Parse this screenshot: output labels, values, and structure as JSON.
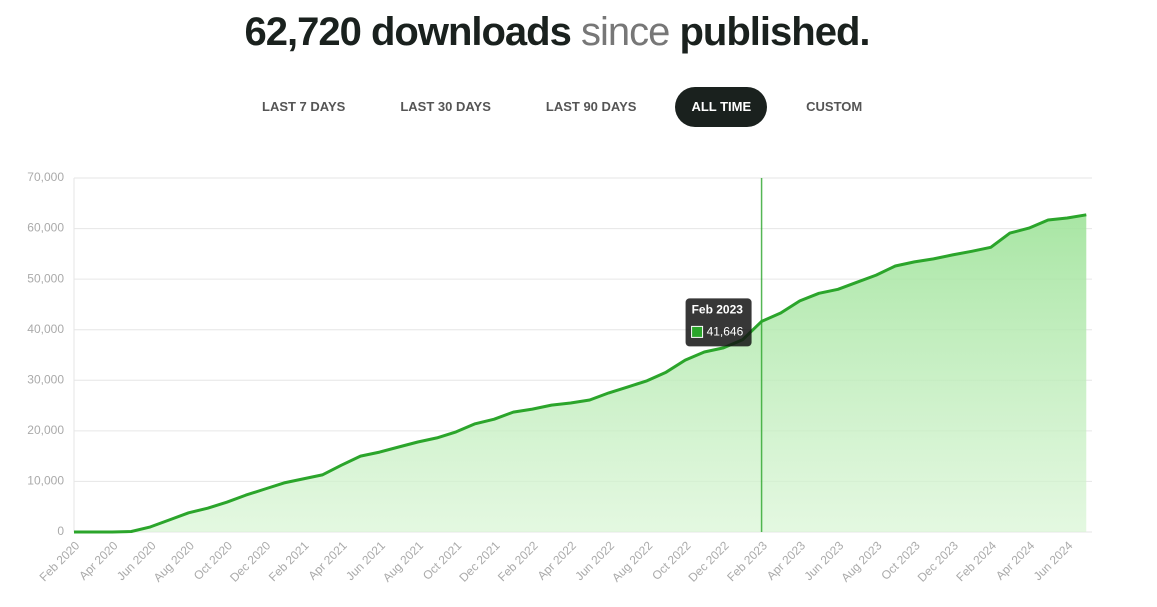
{
  "header": {
    "count": "62,720 downloads",
    "since": "since",
    "published": "published."
  },
  "tabs": [
    {
      "label": "LAST 7 DAYS",
      "active": false
    },
    {
      "label": "LAST 30 DAYS",
      "active": false
    },
    {
      "label": "LAST 90 DAYS",
      "active": false
    },
    {
      "label": "ALL TIME",
      "active": true
    },
    {
      "label": "CUSTOM",
      "active": false
    }
  ],
  "chart_data": {
    "type": "area",
    "categories": [
      "Feb 2020",
      null,
      "Apr 2020",
      null,
      "Jun 2020",
      null,
      "Aug 2020",
      null,
      "Oct 2020",
      null,
      "Dec 2020",
      null,
      "Feb 2021",
      null,
      "Apr 2021",
      null,
      "Jun 2021",
      null,
      "Aug 2021",
      null,
      "Oct 2021",
      null,
      "Dec 2021",
      null,
      "Feb 2022",
      null,
      "Apr 2022",
      null,
      "Jun 2022",
      null,
      "Aug 2022",
      null,
      "Oct 2022",
      null,
      "Dec 2022",
      null,
      "Feb 2023",
      null,
      "Apr 2023",
      null,
      "Jun 2023",
      null,
      "Aug 2023",
      null,
      "Oct 2023",
      null,
      "Dec 2023",
      null,
      "Feb 2024",
      null,
      "Apr 2024",
      null,
      "Jun 2024",
      null
    ],
    "values": [
      0,
      0,
      0,
      100,
      1000,
      2400,
      3800,
      4700,
      5900,
      7300,
      8500,
      9700,
      10500,
      11300,
      13200,
      15000,
      15800,
      16800,
      17800,
      18600,
      19800,
      21400,
      22300,
      23700,
      24300,
      25100,
      25500,
      26100,
      27500,
      28700,
      29900,
      31600,
      34000,
      35600,
      36400,
      38000,
      41646,
      43300,
      45700,
      47200,
      48000,
      49400,
      50800,
      52600,
      53400,
      54000,
      54800,
      55500,
      56300,
      59100,
      60100,
      61700,
      62100,
      62720
    ],
    "value_labels": [
      null,
      null,
      null,
      null,
      null,
      null,
      null,
      null,
      null,
      null,
      null,
      null,
      null,
      null,
      null,
      null,
      null,
      null,
      null,
      null,
      null,
      null,
      null,
      null,
      null,
      null,
      null,
      null,
      null,
      null,
      null,
      null,
      null,
      null,
      null,
      null,
      "41,646",
      null,
      null,
      null,
      null,
      null,
      null,
      null,
      null,
      null,
      null,
      null,
      null,
      null,
      null,
      null,
      null,
      null
    ],
    "color": "#2ba52b",
    "ylim": [
      0,
      70000
    ],
    "yticks": [
      0,
      {
        "value": 10000,
        "label": "10,000"
      },
      {
        "value": 20000,
        "label": "20,000"
      },
      {
        "value": 30000,
        "label": "30,000"
      },
      {
        "value": 40000,
        "label": "40,000"
      },
      {
        "value": 50000,
        "label": "50,000"
      },
      {
        "value": 60000,
        "label": "60,000"
      },
      {
        "value": 70000,
        "label": "70,000"
      }
    ],
    "grid": true
  }
}
